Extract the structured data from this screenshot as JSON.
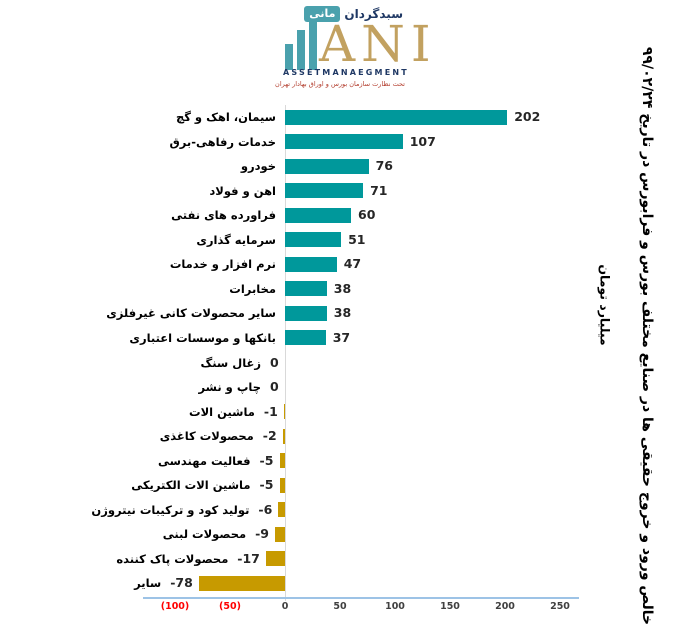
{
  "logo": {
    "brand_fa_primary": "سبدگردان",
    "brand_fa_badge": "مانی",
    "brand_en": "ANI",
    "brand_sub_en": "ASSETMANAEGMENT",
    "regulator_fa": "تحت نظارت سازمان بورس و اوراق بهادار تهران",
    "colors": {
      "teal": "#4aa1ad",
      "tan": "#c2a160",
      "navy": "#1f3864",
      "red": "#b23b2b"
    }
  },
  "chart_data": {
    "type": "bar",
    "orientation": "horizontal",
    "title": "خالص ورود و خروج حقیقی ها در صنایع مختلف بورس و فرابورس در تاریخ ۹۹/۰۲/۲۴",
    "subtitle": "میلیارد تومان",
    "unit": "میلیارد تومان",
    "categories": [
      "سیمان، اهک و گچ",
      "خدمات رفاهی-برق",
      "خودرو",
      "اهن و فولاد",
      "فراورده های نفتی",
      "سرمایه گذاری",
      "نرم افزار و خدمات",
      "مخابرات",
      "سایر محصولات کانی غیرفلزی",
      "بانکها و موسسات اعتباری",
      "زغال سنگ",
      "چاپ و نشر",
      "ماشین الات",
      "محصولات کاغذی",
      "فعالیت مهندسی",
      "ماشین الات الکتریکی",
      "تولید کود و ترکیبات نیتروژن",
      "محصولات لبنی",
      "محصولات پاک کننده",
      "سایر"
    ],
    "values": [
      202,
      107,
      76,
      71,
      60,
      51,
      47,
      38,
      38,
      37,
      0,
      0,
      -1,
      -2,
      -5,
      -5,
      -6,
      -9,
      -17,
      -78
    ],
    "xlim": [
      -100,
      250
    ],
    "x_ticks": [
      {
        "label": "(100)",
        "value": -100,
        "negative": true
      },
      {
        "label": "(50)",
        "value": -50,
        "negative": true
      },
      {
        "label": "0",
        "value": 0,
        "negative": false
      },
      {
        "label": "50",
        "value": 50,
        "negative": false
      },
      {
        "label": "100",
        "value": 100,
        "negative": false
      },
      {
        "label": "150",
        "value": 150,
        "negative": false
      },
      {
        "label": "200",
        "value": 200,
        "negative": false
      },
      {
        "label": "250",
        "value": 250,
        "negative": false
      }
    ],
    "positive_color": "#00989b",
    "negative_color": "#c79a00",
    "tick_color": "#404040",
    "tick_negative_color": "#ff0000",
    "axis_line_color": "#9dc3e6",
    "zero_line_color": "#d9d9d9",
    "grid": false,
    "legend": null
  }
}
